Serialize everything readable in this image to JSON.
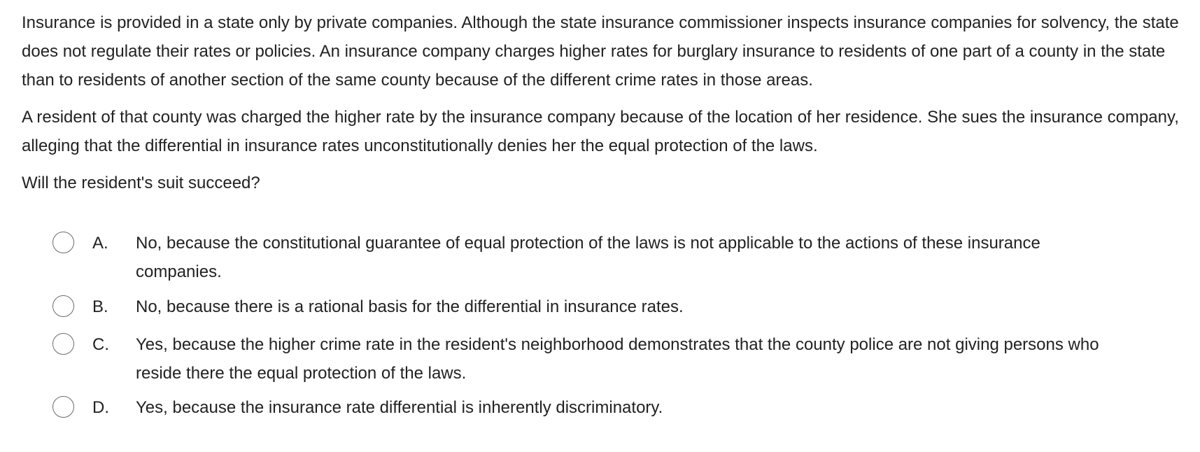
{
  "question": {
    "paragraphs": [
      "Insurance is provided in a state only by private companies.  Although the state insurance commissioner inspects insurance companies for solvency, the state does not regulate their rates or policies.  An insurance company charges higher rates for burglary insurance to residents of one part of a county in the state than to residents of another section of the same county because of the different crime rates in those areas.",
      "A resident of that county was charged the higher rate by the insurance company because of the location of her residence.  She sues the insurance company, alleging that the differential in insurance rates unconstitutionally denies her the equal protection of the laws.",
      "Will the resident's suit succeed?"
    ]
  },
  "choices": [
    {
      "letter": "A.",
      "line1": "No, because the constitutional guarantee of equal protection of the laws is not applicable to the actions of these insurance",
      "line2": "companies."
    },
    {
      "letter": "B.",
      "line1": "No, because there is a rational basis for the differential in insurance rates.",
      "line2": ""
    },
    {
      "letter": "C.",
      "line1": "Yes, because the higher crime rate in the resident's neighborhood demonstrates that the county police are not giving persons who",
      "line2": "reside there the equal protection of the laws."
    },
    {
      "letter": "D.",
      "line1": "Yes, because the insurance rate differential is inherently discriminatory.",
      "line2": ""
    }
  ]
}
